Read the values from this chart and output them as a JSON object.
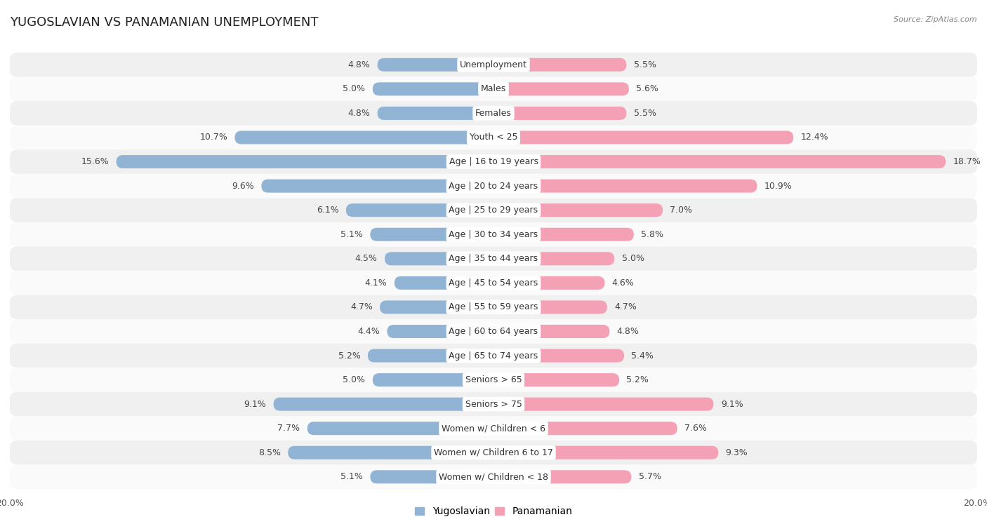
{
  "title": "YUGOSLAVIAN VS PANAMANIAN UNEMPLOYMENT",
  "source": "Source: ZipAtlas.com",
  "categories": [
    "Unemployment",
    "Males",
    "Females",
    "Youth < 25",
    "Age | 16 to 19 years",
    "Age | 20 to 24 years",
    "Age | 25 to 29 years",
    "Age | 30 to 34 years",
    "Age | 35 to 44 years",
    "Age | 45 to 54 years",
    "Age | 55 to 59 years",
    "Age | 60 to 64 years",
    "Age | 65 to 74 years",
    "Seniors > 65",
    "Seniors > 75",
    "Women w/ Children < 6",
    "Women w/ Children 6 to 17",
    "Women w/ Children < 18"
  ],
  "yugoslavian": [
    4.8,
    5.0,
    4.8,
    10.7,
    15.6,
    9.6,
    6.1,
    5.1,
    4.5,
    4.1,
    4.7,
    4.4,
    5.2,
    5.0,
    9.1,
    7.7,
    8.5,
    5.1
  ],
  "panamanian": [
    5.5,
    5.6,
    5.5,
    12.4,
    18.7,
    10.9,
    7.0,
    5.8,
    5.0,
    4.6,
    4.7,
    4.8,
    5.4,
    5.2,
    9.1,
    7.6,
    9.3,
    5.7
  ],
  "yugoslav_color": "#92b4d4",
  "panamanian_color": "#f4a0b5",
  "row_bg_light": "#f0f0f0",
  "row_bg_white": "#fafafa",
  "xlim": 20.0,
  "bar_height": 0.55,
  "legend_yugoslav": "Yugoslavian",
  "legend_panamanian": "Panamanian",
  "label_fontsize": 9,
  "cat_fontsize": 9,
  "title_fontsize": 13
}
